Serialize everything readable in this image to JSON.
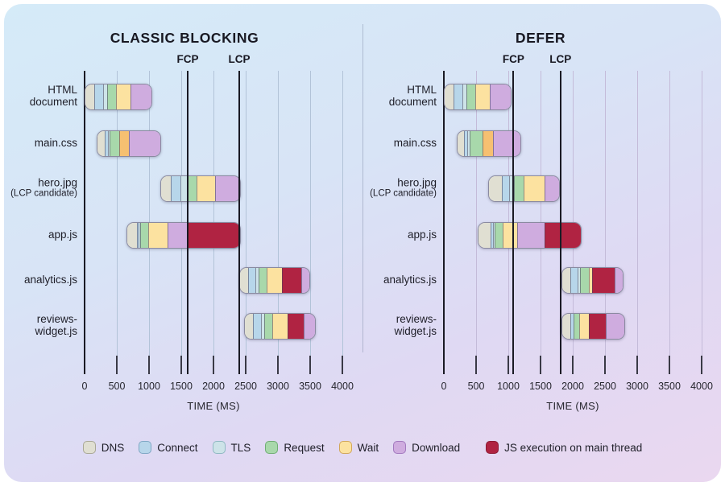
{
  "colors": {
    "dns": {
      "fill": "#e0dfd2",
      "border": "#a9a896"
    },
    "connect": {
      "fill": "#b7d6ea",
      "border": "#7fa7c4"
    },
    "tls": {
      "fill": "#cde3e8",
      "border": "#8fb9c2"
    },
    "request": {
      "fill": "#a8d8ab",
      "border": "#6fae74"
    },
    "wait": {
      "fill": "#fce2a0",
      "border": "#d2a75a"
    },
    "wait_orange": {
      "fill": "#f6c071",
      "border": "#cf9440"
    },
    "download": {
      "fill": "#cfacdf",
      "border": "#a279bf"
    },
    "js": {
      "fill": "#b02342",
      "border": "#8c1b34"
    }
  },
  "legend": [
    {
      "key": "dns",
      "label": "DNS"
    },
    {
      "key": "connect",
      "label": "Connect"
    },
    {
      "key": "tls",
      "label": "TLS"
    },
    {
      "key": "request",
      "label": "Request"
    },
    {
      "key": "wait",
      "label": "Wait"
    },
    {
      "key": "download",
      "label": "Download"
    },
    {
      "key": "js",
      "label": "JS execution on main thread"
    }
  ],
  "chart_data": {
    "type": "bar",
    "subtype": "horizontal-stacked-waterfall",
    "unit": "ms",
    "axis": {
      "ticks": [
        0,
        500,
        1000,
        1500,
        2000,
        2500,
        3000,
        3500,
        4000
      ],
      "max": 4000,
      "label": "TIME (MS)"
    },
    "charts": [
      {
        "title": "CLASSIC BLOCKING",
        "markers": [
          {
            "label": "FCP",
            "ms": 1600
          },
          {
            "label": "LCP",
            "ms": 2400
          }
        ],
        "rows": [
          {
            "label_lines": [
              "HTML",
              "document"
            ],
            "small_second_line": false,
            "segments": [
              [
                "dns",
                0,
                140
              ],
              [
                "connect",
                140,
                280
              ],
              [
                "tls",
                280,
                335
              ],
              [
                "request",
                335,
                480
              ],
              [
                "wait",
                480,
                700
              ],
              [
                "download",
                700,
                1030
              ]
            ]
          },
          {
            "label_lines": [
              "main.css"
            ],
            "small_second_line": false,
            "segments": [
              [
                "dns",
                185,
                295
              ],
              [
                "connect",
                295,
                345
              ],
              [
                "tls",
                345,
                380
              ],
              [
                "request",
                380,
                530
              ],
              [
                "wait_orange",
                530,
                670
              ],
              [
                "download",
                670,
                1165
              ]
            ]
          },
          {
            "label_lines": [
              "hero.jpg",
              "(LCP candidate)"
            ],
            "small_second_line": true,
            "segments": [
              [
                "dns",
                1180,
                1330
              ],
              [
                "connect",
                1330,
                1480
              ],
              [
                "tls",
                1480,
                1580
              ],
              [
                "request",
                1580,
                1720
              ],
              [
                "wait",
                1720,
                2010
              ],
              [
                "download",
                2010,
                2400
              ]
            ]
          },
          {
            "label_lines": [
              "app.js"
            ],
            "small_second_line": false,
            "segments": [
              [
                "dns",
                650,
                800
              ],
              [
                "connect",
                800,
                830
              ],
              [
                "tls",
                830,
                850
              ],
              [
                "request",
                850,
                970
              ],
              [
                "wait",
                970,
                1280
              ],
              [
                "download",
                1280,
                1590
              ],
              [
                "js",
                1590,
                2400
              ]
            ]
          },
          {
            "label_lines": [
              "analytics.js"
            ],
            "small_second_line": false,
            "segments": [
              [
                "dns",
                2400,
                2530
              ],
              [
                "connect",
                2530,
                2640
              ],
              [
                "tls",
                2640,
                2690
              ],
              [
                "request",
                2690,
                2810
              ],
              [
                "wait",
                2810,
                3050
              ],
              [
                "js",
                3050,
                3350
              ],
              [
                "download",
                3350,
                3480
              ]
            ]
          },
          {
            "label_lines": [
              "reviews-",
              "widget.js"
            ],
            "small_second_line": false,
            "segments": [
              [
                "dns",
                2470,
                2600
              ],
              [
                "connect",
                2600,
                2720
              ],
              [
                "tls",
                2720,
                2770
              ],
              [
                "request",
                2770,
                2900
              ],
              [
                "wait",
                2900,
                3140
              ],
              [
                "js",
                3140,
                3390
              ],
              [
                "download",
                3390,
                3560
              ]
            ]
          }
        ]
      },
      {
        "title": "DEFER",
        "markers": [
          {
            "label": "FCP",
            "ms": 1080
          },
          {
            "label": "LCP",
            "ms": 1810
          }
        ],
        "rows": [
          {
            "label_lines": [
              "HTML",
              "document"
            ],
            "small_second_line": false,
            "segments": [
              [
                "dns",
                0,
                140
              ],
              [
                "connect",
                140,
                280
              ],
              [
                "tls",
                280,
                335
              ],
              [
                "request",
                335,
                480
              ],
              [
                "wait",
                480,
                700
              ],
              [
                "download",
                700,
                1030
              ]
            ]
          },
          {
            "label_lines": [
              "main.css"
            ],
            "small_second_line": false,
            "segments": [
              [
                "dns",
                195,
                300
              ],
              [
                "connect",
                300,
                345
              ],
              [
                "tls",
                345,
                390
              ],
              [
                "request",
                390,
                590
              ],
              [
                "wait_orange",
                590,
                750
              ],
              [
                "download",
                750,
                1175
              ]
            ]
          },
          {
            "label_lines": [
              "hero.jpg",
              "(LCP candidate)"
            ],
            "small_second_line": true,
            "segments": [
              [
                "dns",
                690,
                885
              ],
              [
                "connect",
                885,
                1000
              ],
              [
                "tls",
                1000,
                1070
              ],
              [
                "request",
                1070,
                1230
              ],
              [
                "wait",
                1230,
                1550
              ],
              [
                "download",
                1550,
                1780
              ]
            ]
          },
          {
            "label_lines": [
              "app.js"
            ],
            "small_second_line": false,
            "segments": [
              [
                "dns",
                530,
                715
              ],
              [
                "connect",
                715,
                750
              ],
              [
                "tls",
                750,
                770
              ],
              [
                "request",
                770,
                905
              ],
              [
                "wait",
                905,
                1120
              ],
              [
                "download",
                1120,
                1550
              ],
              [
                "js",
                1550,
                2110
              ]
            ]
          },
          {
            "label_lines": [
              "analytics.js"
            ],
            "small_second_line": false,
            "segments": [
              [
                "dns",
                1820,
                1955
              ],
              [
                "connect",
                1955,
                2060
              ],
              [
                "tls",
                2060,
                2105
              ],
              [
                "request",
                2105,
                2240
              ],
              [
                "wait",
                2240,
                2290
              ],
              [
                "js",
                2290,
                2635
              ],
              [
                "download",
                2635,
                2760
              ]
            ]
          },
          {
            "label_lines": [
              "reviews-",
              "widget.js"
            ],
            "small_second_line": false,
            "segments": [
              [
                "dns",
                1820,
                1945
              ],
              [
                "connect",
                1945,
                2005
              ],
              [
                "request",
                2005,
                2090
              ],
              [
                "wait",
                2090,
                2240
              ],
              [
                "js",
                2240,
                2505
              ],
              [
                "download",
                2505,
                2790
              ]
            ]
          }
        ]
      }
    ]
  }
}
